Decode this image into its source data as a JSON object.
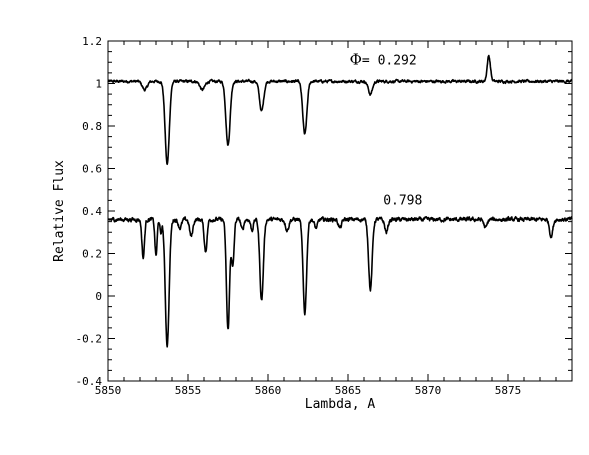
{
  "chart_data": {
    "type": "line",
    "xlabel": "Lambda, A",
    "ylabel": "Relative Flux",
    "xlim": [
      5850,
      5879
    ],
    "ylim": [
      -0.4,
      1.2
    ],
    "x_ticks": [
      5850,
      5855,
      5860,
      5865,
      5870,
      5875
    ],
    "y_ticks": [
      -0.4,
      -0.2,
      0,
      0.2,
      0.4,
      0.6,
      0.8,
      1,
      1.2
    ],
    "y_tick_labels": [
      "-0.4",
      "-0.2",
      "0",
      "0.2",
      "0.4",
      "0.6",
      "0.8",
      "1",
      "1.2"
    ],
    "grid": false,
    "series": [
      {
        "name": "0.292",
        "label_prefix": "Φ= ",
        "baseline": 1.01,
        "noise": 0.008,
        "lines": [
          {
            "x": 5852.3,
            "depth": 0.04,
            "width": 0.15
          },
          {
            "x": 5853.7,
            "depth": 0.39,
            "width": 0.13
          },
          {
            "x": 5855.9,
            "depth": 0.04,
            "width": 0.15
          },
          {
            "x": 5857.5,
            "depth": 0.3,
            "width": 0.13
          },
          {
            "x": 5859.6,
            "depth": 0.14,
            "width": 0.13
          },
          {
            "x": 5862.3,
            "depth": 0.25,
            "width": 0.13
          },
          {
            "x": 5866.4,
            "depth": 0.06,
            "width": 0.13
          },
          {
            "x": 5873.8,
            "depth": -0.12,
            "width": 0.1
          }
        ]
      },
      {
        "name": "0.798",
        "baseline": 0.36,
        "noise": 0.012,
        "lines": [
          {
            "x": 5852.2,
            "depth": 0.18,
            "width": 0.08
          },
          {
            "x": 5853.0,
            "depth": 0.17,
            "width": 0.07
          },
          {
            "x": 5853.3,
            "depth": 0.07,
            "width": 0.05
          },
          {
            "x": 5853.7,
            "depth": 0.59,
            "width": 0.12
          },
          {
            "x": 5854.5,
            "depth": 0.04,
            "width": 0.1
          },
          {
            "x": 5855.2,
            "depth": 0.08,
            "width": 0.1
          },
          {
            "x": 5856.1,
            "depth": 0.15,
            "width": 0.09
          },
          {
            "x": 5857.5,
            "depth": 0.52,
            "width": 0.1
          },
          {
            "x": 5857.8,
            "depth": 0.22,
            "width": 0.08
          },
          {
            "x": 5858.4,
            "depth": 0.05,
            "width": 0.08
          },
          {
            "x": 5859.0,
            "depth": 0.05,
            "width": 0.08
          },
          {
            "x": 5859.6,
            "depth": 0.38,
            "width": 0.11
          },
          {
            "x": 5861.2,
            "depth": 0.05,
            "width": 0.1
          },
          {
            "x": 5862.3,
            "depth": 0.44,
            "width": 0.11
          },
          {
            "x": 5863.0,
            "depth": 0.04,
            "width": 0.1
          },
          {
            "x": 5864.5,
            "depth": 0.04,
            "width": 0.1
          },
          {
            "x": 5866.4,
            "depth": 0.33,
            "width": 0.11
          },
          {
            "x": 5867.4,
            "depth": 0.06,
            "width": 0.1
          },
          {
            "x": 5873.6,
            "depth": 0.04,
            "width": 0.1
          },
          {
            "x": 5877.7,
            "depth": 0.08,
            "width": 0.1
          }
        ]
      }
    ],
    "annotations": [
      {
        "text": "0.292",
        "prefix": "Φ= ",
        "x": 5865.1,
        "y": 1.09
      },
      {
        "text": "0.798",
        "x": 5867.2,
        "y": 0.43
      }
    ]
  }
}
